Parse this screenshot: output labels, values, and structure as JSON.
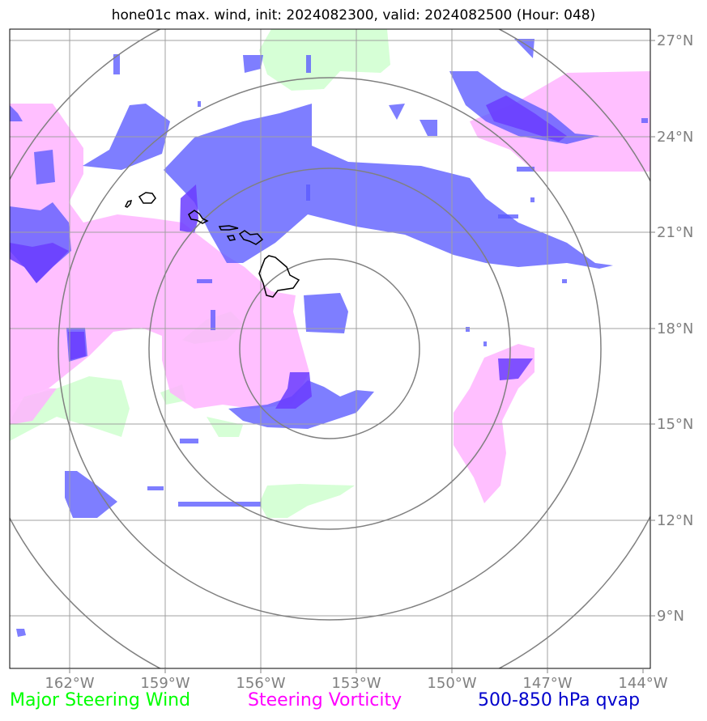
{
  "title": "hone01c max. wind, init: 2024082300, valid: 2024082500 (Hour: 048)",
  "legend": [
    {
      "label": "Major Steering Wind",
      "color": "#00ff00"
    },
    {
      "label": "Steering Vorticity",
      "color": "#ff00ff"
    },
    {
      "label": "500-850 hPa qvap",
      "color": "#0000cc"
    }
  ],
  "axes": {
    "lon_ticks": [
      "162°W",
      "159°W",
      "156°W",
      "153°W",
      "150°W",
      "147°W",
      "144°W"
    ],
    "lat_ticks": [
      "27°N",
      "24°N",
      "21°N",
      "18°N",
      "15°N",
      "12°N",
      "9°N"
    ]
  },
  "colors": {
    "wind_fill": "#c8ffc8",
    "vorticity_fill": "#ffb4ff",
    "qvap_fill": "#5a5aff",
    "qvap_core": "#6a3cff",
    "grid": "#a0a0a0",
    "range_ring": "#808080",
    "coastline": "#000000"
  }
}
